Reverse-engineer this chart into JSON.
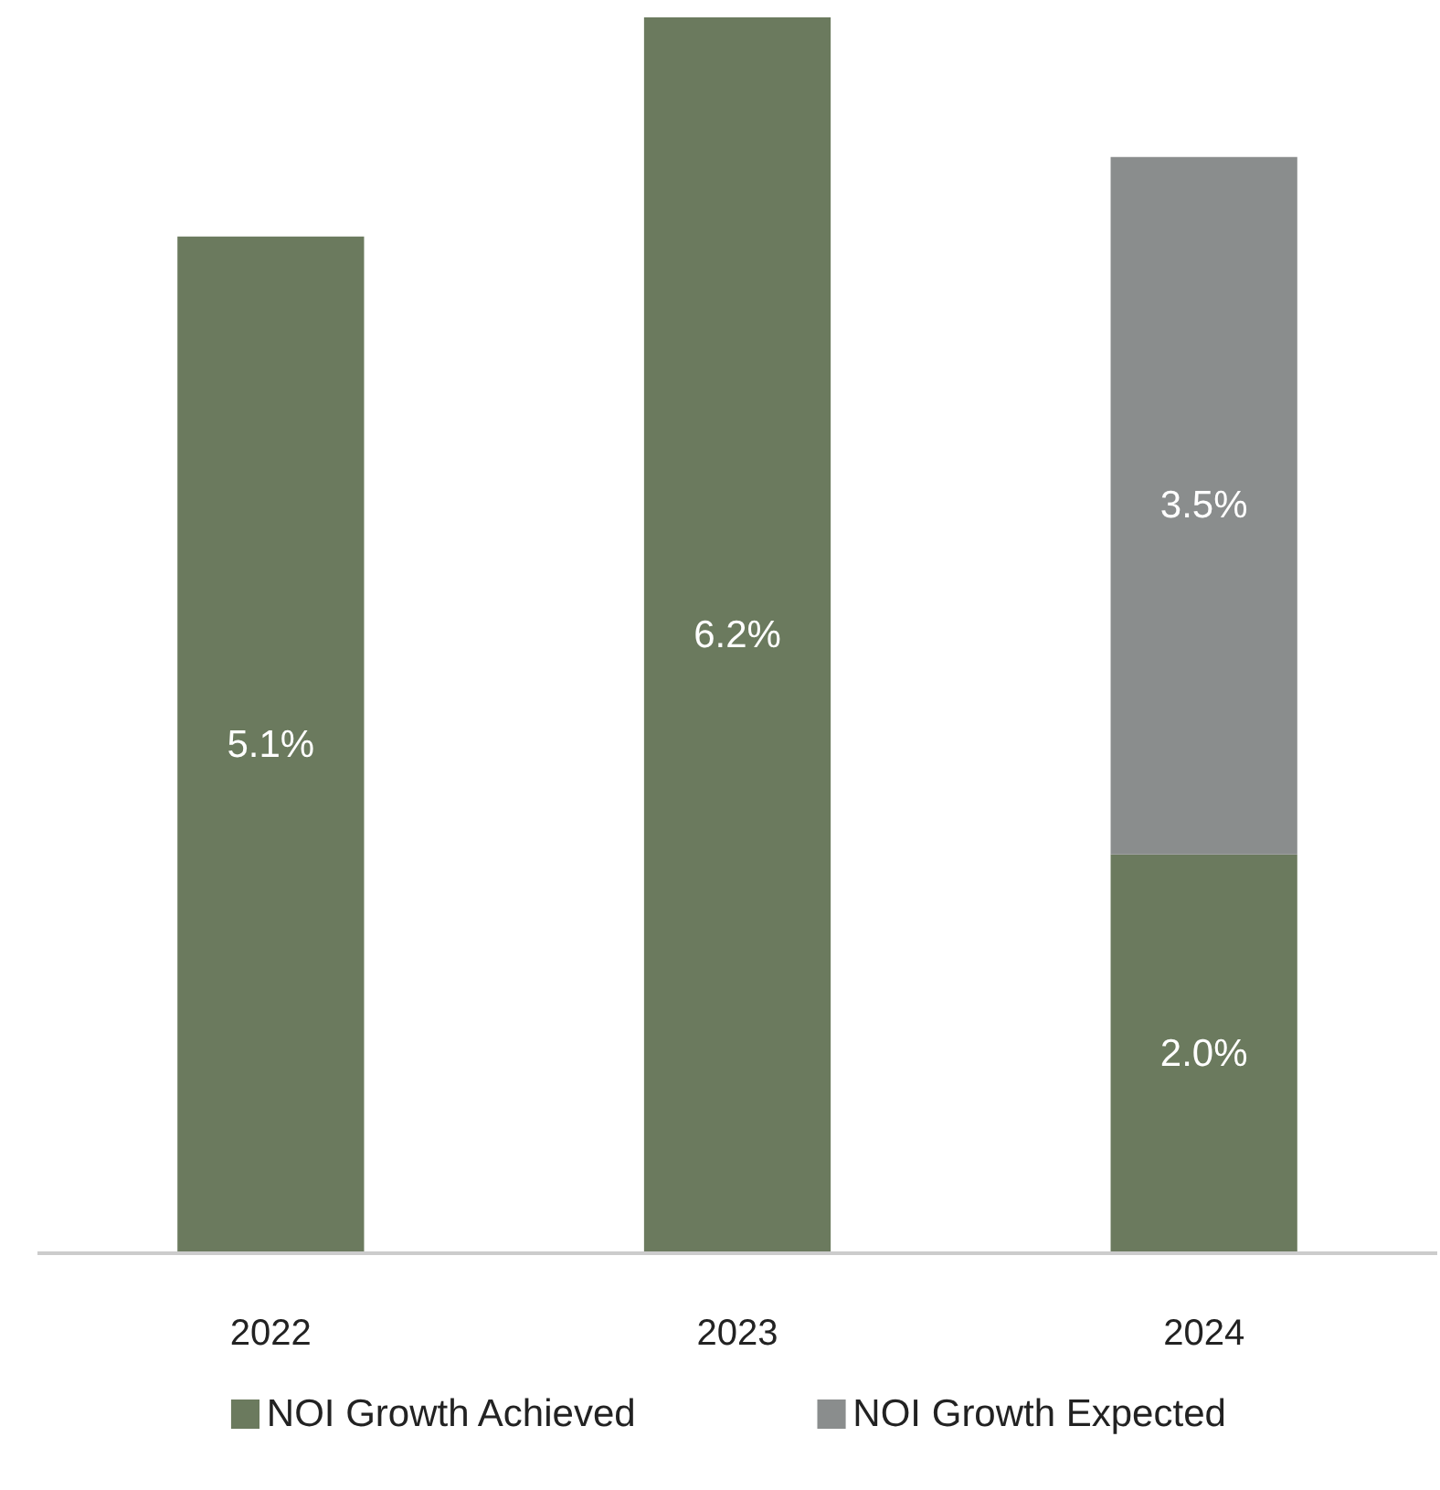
{
  "chart_data": {
    "type": "bar",
    "stacked": true,
    "categories": [
      "2022",
      "2023",
      "2024"
    ],
    "series": [
      {
        "name": "NOI Growth Achieved",
        "color": "#6b7a5e",
        "values": [
          5.1,
          6.2,
          2.0
        ],
        "value_labels": [
          "5.1%",
          "6.2%",
          "2.0%"
        ]
      },
      {
        "name": "NOI Growth Expected",
        "color": "#8a8d8d",
        "values": [
          null,
          null,
          3.5
        ],
        "value_labels": [
          null,
          null,
          "3.5%"
        ]
      }
    ],
    "legend": "bottom",
    "grid": false
  }
}
